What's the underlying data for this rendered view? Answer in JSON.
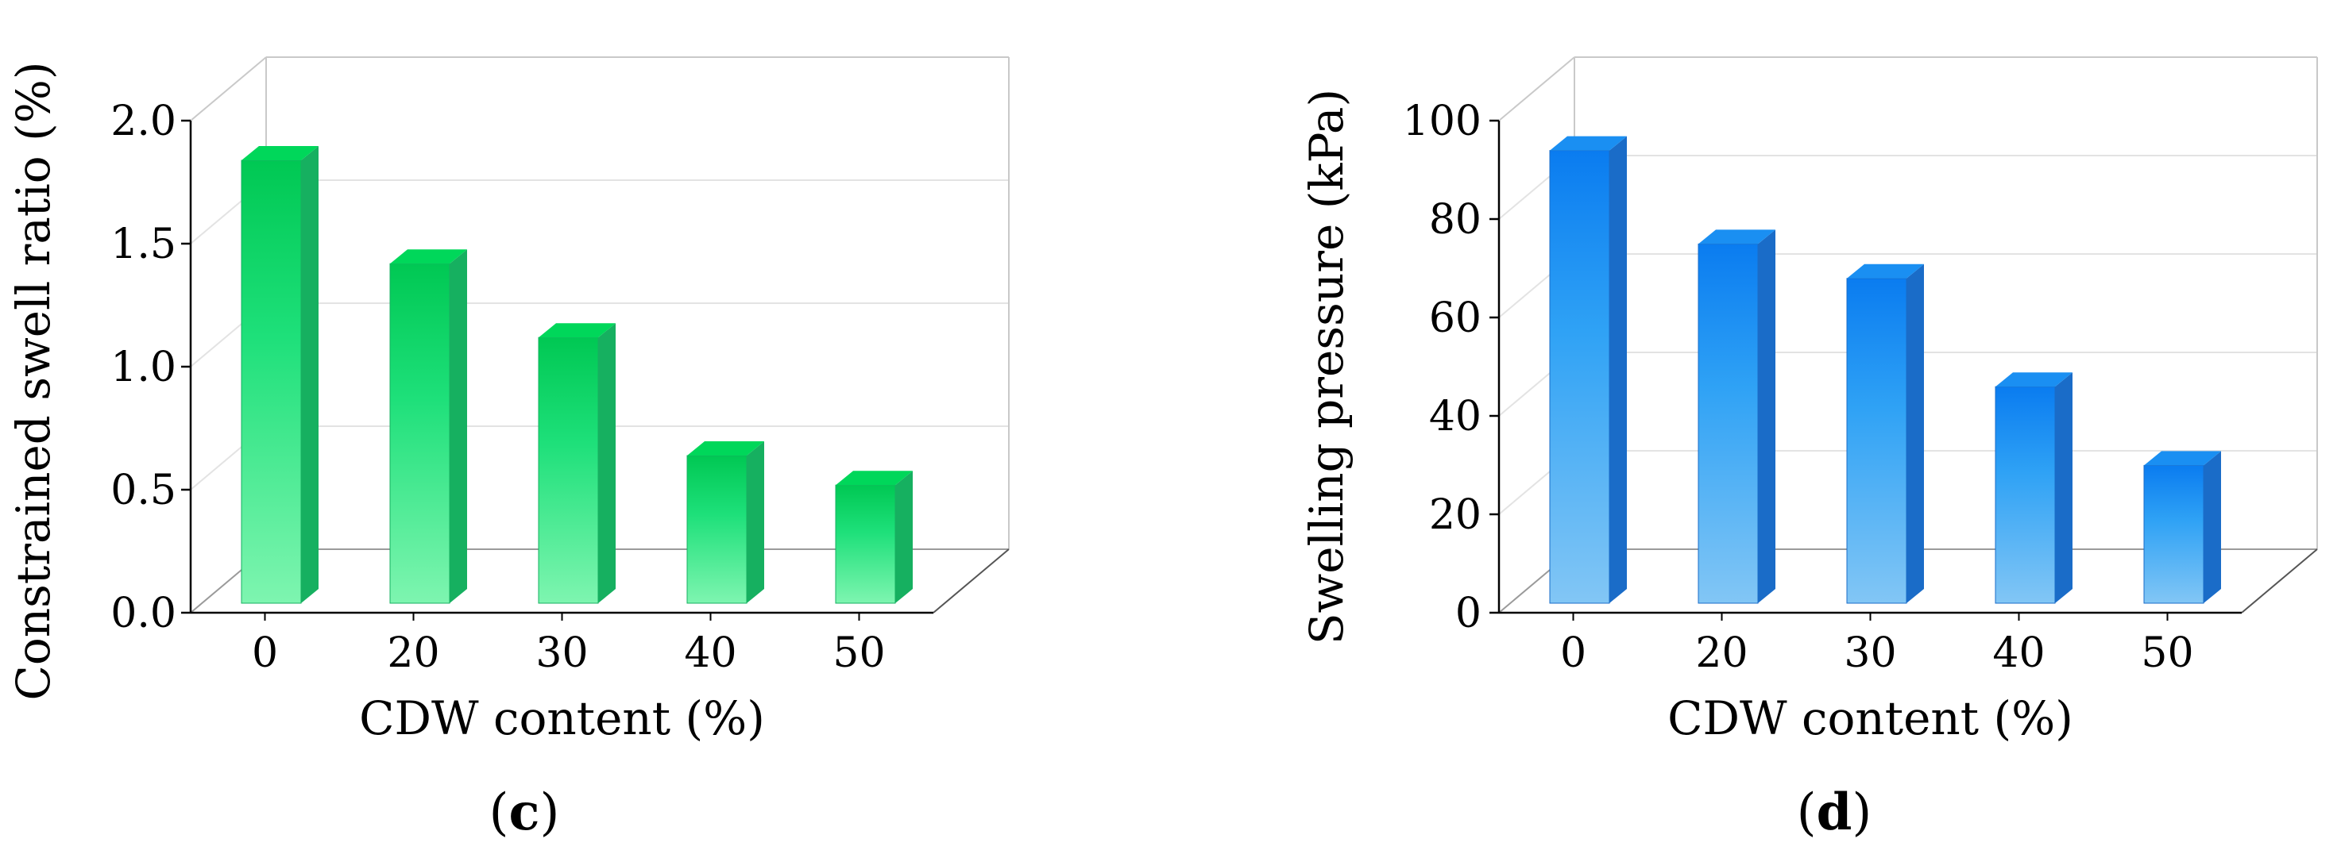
{
  "chart_data": [
    {
      "type": "bar",
      "panel_label": "c",
      "xlabel": "CDW content (%)",
      "ylabel": "Constrained swell ratio (%)",
      "categories": [
        "0",
        "20",
        "30",
        "40",
        "50"
      ],
      "values": [
        1.8,
        1.38,
        1.08,
        0.6,
        0.48
      ],
      "ylim": [
        0,
        2.0
      ],
      "yticks": [
        "0.0",
        "0.5",
        "1.0",
        "1.5",
        "2.0"
      ],
      "grid": true,
      "style": "3d",
      "colors": {
        "top": "#00c853",
        "mid": "#1ee07a",
        "bottom": "#7ef5b0",
        "side": "#16b060",
        "cap": "#00d75a"
      }
    },
    {
      "type": "bar",
      "panel_label": "d",
      "xlabel": "CDW content (%)",
      "ylabel": "Swelling pressure (kPa)",
      "categories": [
        "0",
        "20",
        "30",
        "40",
        "50"
      ],
      "values": [
        92,
        73,
        66,
        44,
        28
      ],
      "ylim": [
        0,
        100
      ],
      "yticks": [
        "0",
        "20",
        "40",
        "60",
        "80",
        "100"
      ],
      "grid": true,
      "style": "3d",
      "colors": {
        "top": "#0a7cf0",
        "mid": "#2fa2f5",
        "bottom": "#82c6f5",
        "side": "#1a6cc8",
        "cap": "#1a8ff2"
      }
    }
  ]
}
